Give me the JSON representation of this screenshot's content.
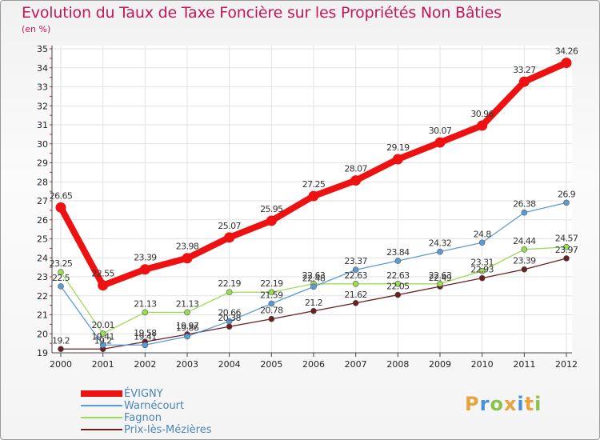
{
  "title": "Evolution du Taux de Taxe Foncière sur les Propriétés Non Bâties",
  "unit": "(en %)",
  "logo": {
    "text": "Proxiti",
    "colors": [
      "#e8a33a",
      "#4a90d9",
      "#8bc34a",
      "#e8a33a",
      "#4a90d9",
      "#e8a33a",
      "#8bc34a"
    ]
  },
  "chart_data": {
    "type": "line",
    "x": [
      "2000",
      "2001",
      "2002",
      "2003",
      "2004",
      "2005",
      "2006",
      "2007",
      "2008",
      "2009",
      "2010",
      "2011",
      "2012"
    ],
    "ylim": [
      19,
      35
    ],
    "yticks": [
      19,
      20,
      21,
      22,
      23,
      24,
      25,
      26,
      27,
      28,
      29,
      30,
      31,
      32,
      33,
      34,
      35
    ],
    "grid": true,
    "legend_position": "bottom-left",
    "series": [
      {
        "name": "ÉVIGNY",
        "color": "#ee1111",
        "width": 8,
        "values": [
          26.65,
          22.55,
          23.39,
          23.98,
          25.07,
          25.95,
          27.25,
          28.07,
          29.19,
          30.07,
          30.96,
          33.27,
          34.26
        ],
        "labels": [
          "26.65",
          "22.55",
          "23.39",
          "23.98",
          "25.07",
          "25.95",
          "27.25",
          "28.07",
          "29.19",
          "30.07",
          "30.96",
          "33.27",
          "34.26"
        ]
      },
      {
        "name": "Warnécourt",
        "color": "#5b9bd5",
        "width": 1.3,
        "values": [
          22.5,
          19.41,
          19.41,
          19.86,
          20.66,
          21.59,
          22.48,
          23.37,
          23.84,
          24.32,
          24.8,
          26.38,
          26.9
        ],
        "labels": [
          "22.5",
          "19.41",
          "19.41",
          "19.86",
          "20.66",
          "21.59",
          "22.48",
          "23.37",
          "23.84",
          "24.32",
          "24.8",
          "26.38",
          "26.9"
        ]
      },
      {
        "name": "Fagnon",
        "color": "#99dd55",
        "width": 1.3,
        "values": [
          23.25,
          20.01,
          21.13,
          21.13,
          22.19,
          22.19,
          22.63,
          22.63,
          22.63,
          22.63,
          23.31,
          24.44,
          24.57
        ],
        "labels": [
          "23.25",
          "20.01",
          "21.13",
          "21.13",
          "22.19",
          "22.19",
          "22.63",
          "22.63",
          "22.63",
          "22.63",
          "23.31",
          "24.44",
          "24.57"
        ]
      },
      {
        "name": "Prix-lès-Mézières",
        "color": "#6b1f1f",
        "width": 1.3,
        "values": [
          19.2,
          19.2,
          19.58,
          19.97,
          20.38,
          20.78,
          21.2,
          21.62,
          22.05,
          22.49,
          22.93,
          23.39,
          23.97
        ],
        "labels": [
          "19.2",
          "19.2",
          "19.58",
          "19.97",
          "20.38",
          "20.78",
          "21.2",
          "21.62",
          "22.05",
          "22.49",
          "22.93",
          "23.39",
          "23.97"
        ]
      }
    ]
  }
}
